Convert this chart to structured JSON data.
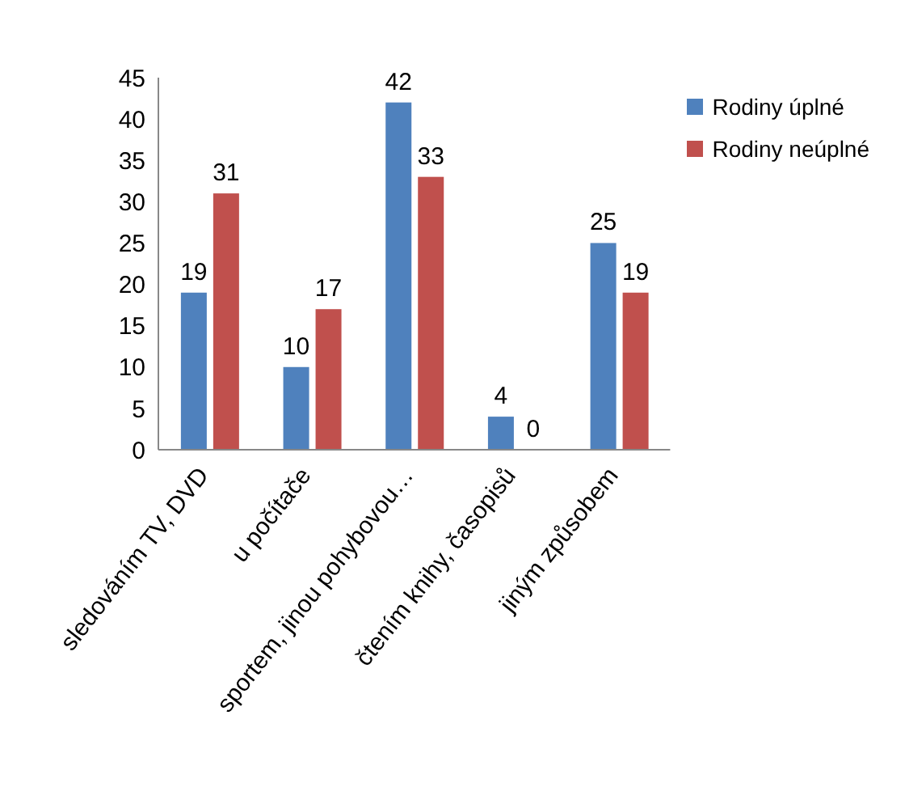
{
  "chart_data": {
    "type": "bar",
    "categories": [
      "sledováním TV, DVD",
      "u počítače",
      "sportem, jinou pohybovou…",
      "čtením knihy, časopisů",
      "jiným způsobem"
    ],
    "series": [
      {
        "name": "Rodiny úplné",
        "color": "#4f81bd",
        "values": [
          19,
          10,
          42,
          4,
          25
        ]
      },
      {
        "name": "Rodiny neúplné",
        "color": "#c0504d",
        "values": [
          31,
          17,
          33,
          0,
          19
        ]
      }
    ],
    "ylim": [
      0,
      45
    ],
    "yticks": [
      0,
      5,
      10,
      15,
      20,
      25,
      30,
      35,
      40,
      45
    ],
    "grid": false,
    "legend": "top right",
    "data_labels": true
  }
}
